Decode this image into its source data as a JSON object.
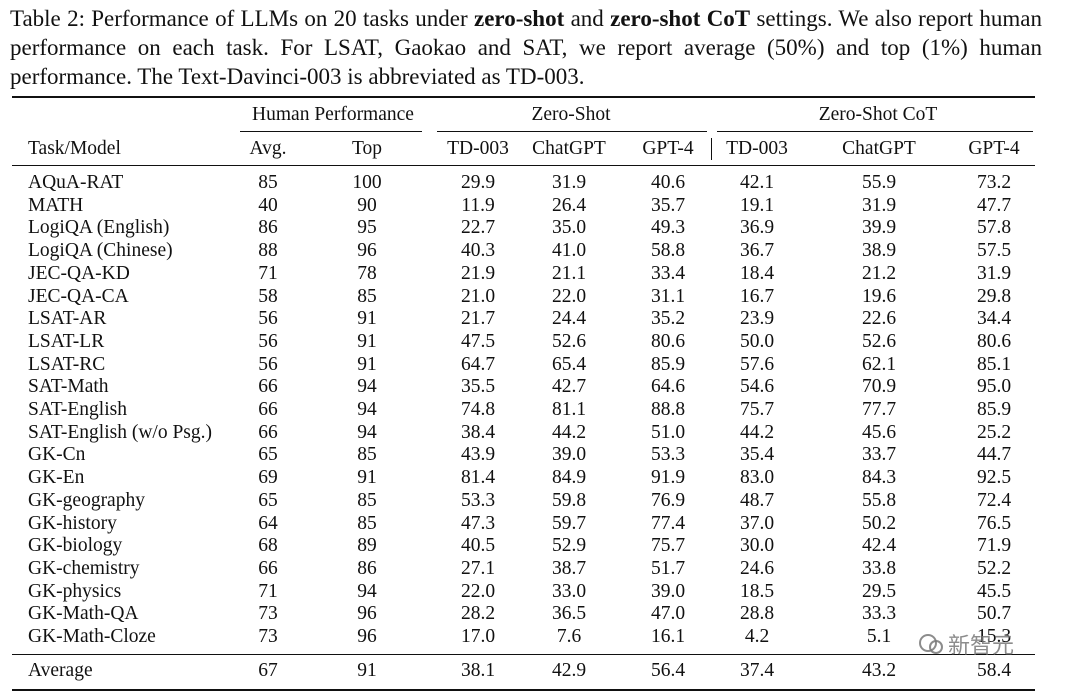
{
  "caption": {
    "parts": [
      "Table 2: Performance of LLMs on 20 tasks under ",
      "zero-shot",
      " and ",
      "zero-shot CoT",
      " settings. We also report human performance on each task. For LSAT, Gaokao and SAT, we report average (50%) and top (1%) human performance. The Text-Davinci-003 is abbreviated as TD-003."
    ]
  },
  "table": {
    "group_headers": [
      "Human Performance",
      "Zero-Shot",
      "Zero-Shot CoT"
    ],
    "column_headers": [
      "Task/Model",
      "Avg.",
      "Top",
      "TD-003",
      "ChatGPT",
      "GPT-4",
      "TD-003",
      "ChatGPT",
      "GPT-4"
    ],
    "rows": [
      [
        "AQuA-RAT",
        "85",
        "100",
        "29.9",
        "31.9",
        "40.6",
        "42.1",
        "55.9",
        "73.2"
      ],
      [
        "MATH",
        "40",
        "90",
        "11.9",
        "26.4",
        "35.7",
        "19.1",
        "31.9",
        "47.7"
      ],
      [
        "LogiQA (English)",
        "86",
        "95",
        "22.7",
        "35.0",
        "49.3",
        "36.9",
        "39.9",
        "57.8"
      ],
      [
        "LogiQA (Chinese)",
        "88",
        "96",
        "40.3",
        "41.0",
        "58.8",
        "36.7",
        "38.9",
        "57.5"
      ],
      [
        "JEC-QA-KD",
        "71",
        "78",
        "21.9",
        "21.1",
        "33.4",
        "18.4",
        "21.2",
        "31.9"
      ],
      [
        "JEC-QA-CA",
        "58",
        "85",
        "21.0",
        "22.0",
        "31.1",
        "16.7",
        "19.6",
        "29.8"
      ],
      [
        "LSAT-AR",
        "56",
        "91",
        "21.7",
        "24.4",
        "35.2",
        "23.9",
        "22.6",
        "34.4"
      ],
      [
        "LSAT-LR",
        "56",
        "91",
        "47.5",
        "52.6",
        "80.6",
        "50.0",
        "52.6",
        "80.6"
      ],
      [
        "LSAT-RC",
        "56",
        "91",
        "64.7",
        "65.4",
        "85.9",
        "57.6",
        "62.1",
        "85.1"
      ],
      [
        "SAT-Math",
        "66",
        "94",
        "35.5",
        "42.7",
        "64.6",
        "54.6",
        "70.9",
        "95.0"
      ],
      [
        "SAT-English",
        "66",
        "94",
        "74.8",
        "81.1",
        "88.8",
        "75.7",
        "77.7",
        "85.9"
      ],
      [
        "SAT-English (w/o Psg.)",
        "66",
        "94",
        "38.4",
        "44.2",
        "51.0",
        "44.2",
        "45.6",
        "25.2"
      ],
      [
        "GK-Cn",
        "65",
        "85",
        "43.9",
        "39.0",
        "53.3",
        "35.4",
        "33.7",
        "44.7"
      ],
      [
        "GK-En",
        "69",
        "91",
        "81.4",
        "84.9",
        "91.9",
        "83.0",
        "84.3",
        "92.5"
      ],
      [
        "GK-geography",
        "65",
        "85",
        "53.3",
        "59.8",
        "76.9",
        "48.7",
        "55.8",
        "72.4"
      ],
      [
        "GK-history",
        "64",
        "85",
        "47.3",
        "59.7",
        "77.4",
        "37.0",
        "50.2",
        "76.5"
      ],
      [
        "GK-biology",
        "68",
        "89",
        "40.5",
        "52.9",
        "75.7",
        "30.0",
        "42.4",
        "71.9"
      ],
      [
        "GK-chemistry",
        "66",
        "86",
        "27.1",
        "38.7",
        "51.7",
        "24.6",
        "33.8",
        "52.2"
      ],
      [
        "GK-physics",
        "71",
        "94",
        "22.0",
        "33.0",
        "39.0",
        "18.5",
        "29.5",
        "45.5"
      ],
      [
        "GK-Math-QA",
        "73",
        "96",
        "28.2",
        "36.5",
        "47.0",
        "28.8",
        "33.3",
        "50.7"
      ],
      [
        "GK-Math-Cloze",
        "73",
        "96",
        "17.0",
        "7.6",
        "16.1",
        "4.2",
        "5.1",
        "15.3"
      ]
    ],
    "average": [
      "Average",
      "67",
      "91",
      "38.1",
      "42.9",
      "56.4",
      "37.4",
      "43.2",
      "58.4"
    ]
  },
  "watermark": "新智元"
}
